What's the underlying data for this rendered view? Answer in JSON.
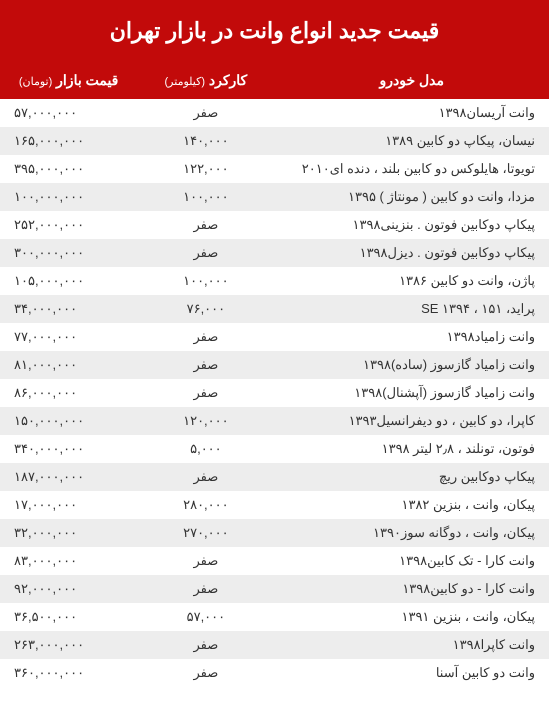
{
  "header": {
    "title": "قیمت جدید انواع وانت در بازار تهران"
  },
  "table": {
    "columns": [
      {
        "label": "مدل خودرو",
        "unit": ""
      },
      {
        "label": "کارکرد",
        "unit": "(کیلومتر)"
      },
      {
        "label": "قیمت بازار",
        "unit": "(تومان)"
      }
    ],
    "rows": [
      [
        "وانت آریسان۱۳۹۸",
        "صفر",
        "۵۷,۰۰۰,۰۰۰"
      ],
      [
        "نیسان، پیکاپ دو کابین  ۱۳۸۹",
        "۱۴۰,۰۰۰",
        "۱۶۵,۰۰۰,۰۰۰"
      ],
      [
        "تویوتا، هایلوکس دو کابین بلند ، دنده ای۲۰۱۰",
        "۱۲۲,۰۰۰",
        "۳۹۵,۰۰۰,۰۰۰"
      ],
      [
        "مزدا، وانت دو کابین ( مونتاژ )  ۱۳۹۵",
        "۱۰۰,۰۰۰",
        "۱۰۰,۰۰۰,۰۰۰"
      ],
      [
        "پیکاپ دوکابین فوتون . بنزینی۱۳۹۸",
        "صفر",
        "۲۵۲,۰۰۰,۰۰۰"
      ],
      [
        "پیکاپ دوکابین فوتون . دیزل۱۳۹۸",
        "صفر",
        "۳۰۰,۰۰۰,۰۰۰"
      ],
      [
        "پاژن، وانت دو کابین ۱۳۸۶",
        "۱۰۰,۰۰۰",
        "۱۰۵,۰۰۰,۰۰۰"
      ],
      [
        "پراید، ۱۵۱ ، SE ۱۳۹۴",
        "۷۶,۰۰۰",
        "۳۴,۰۰۰,۰۰۰"
      ],
      [
        "وانت زامیاد۱۳۹۸",
        "صفر",
        "۷۷,۰۰۰,۰۰۰"
      ],
      [
        "وانت زامیاد گازسوز (ساده)۱۳۹۸",
        "صفر",
        "۸۱,۰۰۰,۰۰۰"
      ],
      [
        "وانت زامیاد گازسوز (آپشنال)۱۳۹۸",
        "صفر",
        "۸۶,۰۰۰,۰۰۰"
      ],
      [
        "کاپرا، دو کابین ، دو دیفرانسیل۱۳۹۳",
        "۱۲۰,۰۰۰",
        "۱۵۰,۰۰۰,۰۰۰"
      ],
      [
        "فوتون، تونلند ، ۲٫۸ لیتر ۱۳۹۸",
        "۵,۰۰۰",
        "۳۴۰,۰۰۰,۰۰۰"
      ],
      [
        "پیکاپ دوکابین ریچ",
        "صفر",
        "۱۸۷,۰۰۰,۰۰۰"
      ],
      [
        "پیکان، وانت ، بنزین ۱۳۸۲",
        "۲۸۰,۰۰۰",
        "۱۷,۰۰۰,۰۰۰"
      ],
      [
        "پیکان، وانت ، دوگانه سوز۱۳۹۰",
        "۲۷۰,۰۰۰",
        "۳۲,۰۰۰,۰۰۰"
      ],
      [
        "وانت کارا - تک کابین۱۳۹۸",
        "صفر",
        "۸۳,۰۰۰,۰۰۰"
      ],
      [
        "وانت کارا - دو کابین۱۳۹۸",
        "صفر",
        "۹۲,۰۰۰,۰۰۰"
      ],
      [
        "پیکان، وانت ، بنزین ۱۳۹۱",
        "۵۷,۰۰۰",
        "۳۶,۵۰۰,۰۰۰"
      ],
      [
        "وانت کاپرا۱۳۹۸",
        "صفر",
        "۲۶۳,۰۰۰,۰۰۰"
      ],
      [
        "وانت دو کابین آسنا",
        "صفر",
        "۳۶۰,۰۰۰,۰۰۰"
      ]
    ],
    "style": {
      "header_bg": "#c20a0a",
      "header_text": "#ffffff",
      "row_odd_bg": "#ffffff",
      "row_even_bg": "#ededed",
      "font_size_header": 22,
      "font_size_th": 14,
      "font_size_td": 13,
      "cell_text_color": "#333333"
    }
  }
}
